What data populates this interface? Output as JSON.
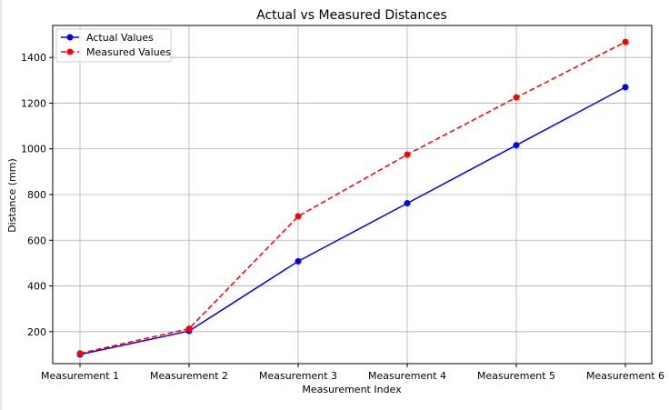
{
  "chart_data": {
    "type": "line",
    "title": "Actual vs Measured Distances",
    "xlabel": "Measurement Index",
    "ylabel": "Distance (mm)",
    "categories": [
      "Measurement 1",
      "Measurement 2",
      "Measurement 3",
      "Measurement 4",
      "Measurement 5",
      "Measurement 6"
    ],
    "series": [
      {
        "name": "Actual Values",
        "values": [
          100,
          203,
          508,
          762,
          1016,
          1270
        ],
        "color": "#0000ff",
        "style": "solid",
        "marker": "circle"
      },
      {
        "name": "Measured Values",
        "values": [
          105,
          213,
          705,
          975,
          1225,
          1468
        ],
        "color": "#ff0000",
        "style": "dashed",
        "marker": "circle"
      }
    ],
    "ylim": [
      60,
      1540
    ],
    "yticks": [
      200,
      400,
      600,
      800,
      1000,
      1200,
      1400
    ],
    "grid": true,
    "legend": "top-left"
  }
}
